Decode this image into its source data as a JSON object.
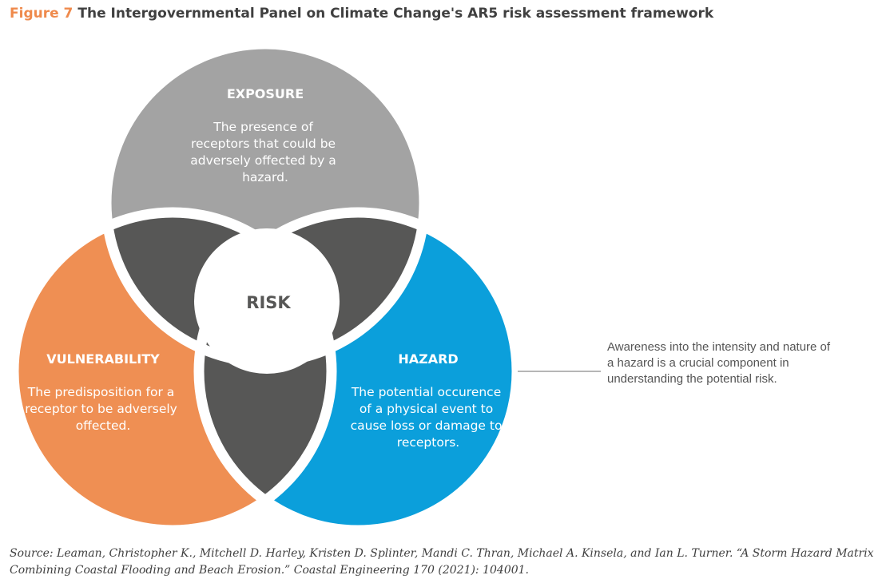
{
  "figure": {
    "number": "Figure 7",
    "title": "The Intergovernmental Panel on Climate Change's AR5 risk assessment framework"
  },
  "colors": {
    "exposure": "#a3a3a3",
    "vulnerability": "#ef8f53",
    "hazard": "#0b9fdb",
    "overlap": "#575756",
    "center": "#ffffff",
    "accent": "#ef8a4c"
  },
  "circles": {
    "exposure": {
      "heading": "EXPOSURE",
      "lines": [
        "The presence of",
        "receptors that could be",
        "adversely offected by a",
        "hazard."
      ]
    },
    "vulnerability": {
      "heading": "VULNERABILITY",
      "lines": [
        "The predisposition for a",
        "receptor to be adversely",
        "offected."
      ]
    },
    "hazard": {
      "heading": "HAZARD",
      "lines": [
        "The potential occurence",
        "of a physical event to",
        "cause loss or damage to",
        "receptors."
      ]
    },
    "center_label": "RISK"
  },
  "callout": {
    "text": "Awareness into the intensity and nature of a hazard is a crucial component in understanding the potential risk."
  },
  "source": "Source: Leaman, Christopher K., Mitchell D. Harley, Kristen D. Splinter, Mandi C. Thran, Michael A. Kinsela, and Ian L. Turner. “A Storm Hazard Matrix Combining Coastal Flooding and Beach Erosion.” Coastal Engineering 170 (2021): 104001."
}
